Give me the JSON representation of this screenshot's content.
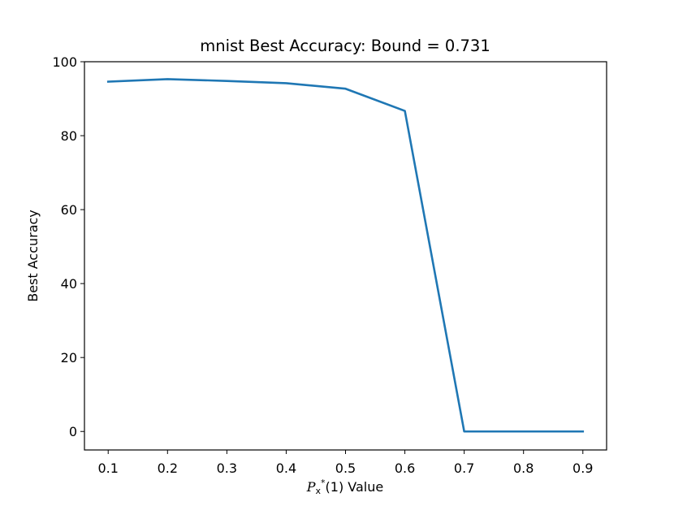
{
  "chart_data": {
    "type": "line",
    "title": "mnist Best Accuracy: Bound = 0.731",
    "xlabel": {
      "symbol": "P",
      "subscript": "x",
      "superscript": "*",
      "rest": "(1) Value"
    },
    "ylabel": "Best Accuracy",
    "xlim": [
      0.06,
      0.94
    ],
    "ylim": [
      -5,
      100
    ],
    "x_ticks": [
      0.1,
      0.2,
      0.3,
      0.4,
      0.5,
      0.6,
      0.7,
      0.8,
      0.9
    ],
    "y_ticks": [
      0,
      20,
      40,
      60,
      80,
      100
    ],
    "grid": false,
    "series": [
      {
        "color": "#1f77b4",
        "x": [
          0.1,
          0.2,
          0.3,
          0.4,
          0.5,
          0.6,
          0.7,
          0.8,
          0.9
        ],
        "y": [
          94.6,
          95.3,
          94.8,
          94.2,
          92.7,
          86.7,
          0.0,
          0.0,
          0.0
        ]
      }
    ]
  }
}
